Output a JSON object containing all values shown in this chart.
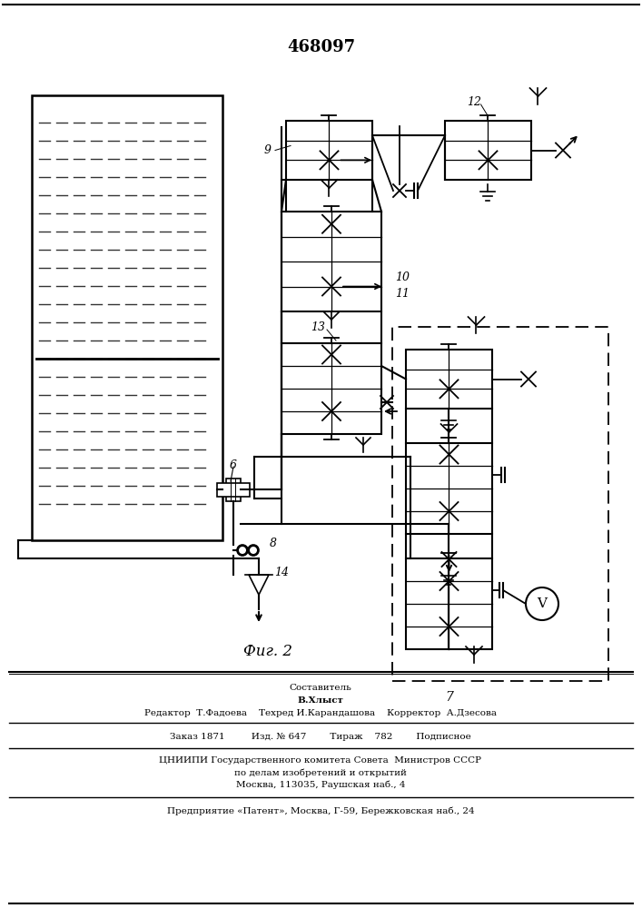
{
  "patent_number": "468097",
  "fig_label": "Фиг. 2",
  "bg_color": "#ffffff",
  "line_color": "#000000",
  "footer_lines": [
    "Составитель",
    "В.Хлыст",
    "Редактор  Т.Фадоева    Техред И.Карандашова    Корректор  А.Дзесова",
    "Заказ 1871         Изд. № 647        Тираж    782        Подписное",
    "ЦНИИПИ Государственного комитета Совета  Министров СССР",
    "по делам изобретений и открытий",
    "Москва, 113035, Раушская наб., 4",
    "Предприятие «Патент», Москва, Г-59, Бережковская наб., 24"
  ]
}
